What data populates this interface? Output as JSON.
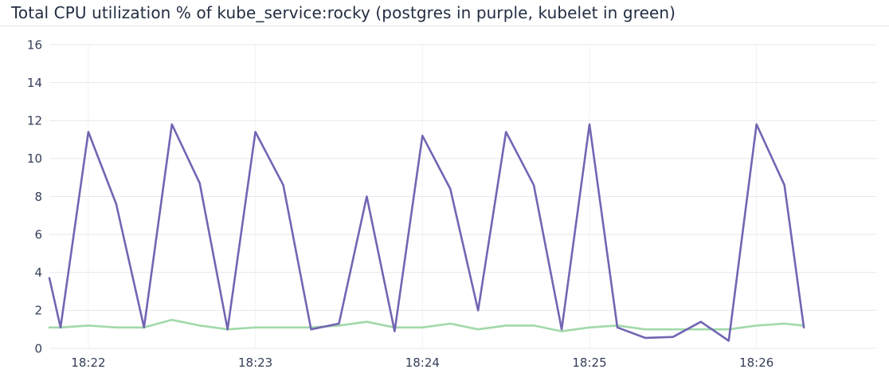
{
  "panel": {
    "title": "Total CPU utilization % of kube_service:rocky (postgres in purple, kubelet in green)"
  },
  "chart_data": {
    "type": "line",
    "title": "Total CPU utilization % of kube_service:rocky (postgres in purple, kubelet in green)",
    "xlabel": "",
    "ylabel": "",
    "ylim": [
      0,
      16
    ],
    "y_ticks": [
      0,
      2,
      4,
      6,
      8,
      10,
      12,
      14,
      16
    ],
    "xlim_seconds": [
      -14,
      283
    ],
    "x_ticks": [
      {
        "offset_s": 0,
        "label": "18:22"
      },
      {
        "offset_s": 60,
        "label": "18:23"
      },
      {
        "offset_s": 120,
        "label": "18:24"
      },
      {
        "offset_s": 180,
        "label": "18:25"
      },
      {
        "offset_s": 240,
        "label": "18:26"
      }
    ],
    "x_offsets_s": [
      -14,
      -10,
      0,
      10,
      20,
      30,
      40,
      50,
      60,
      70,
      80,
      90,
      100,
      110,
      120,
      130,
      140,
      150,
      160,
      170,
      180,
      190,
      200,
      210,
      220,
      230,
      240,
      250,
      257
    ],
    "series": [
      {
        "name": "postgres",
        "color": "#7265b3",
        "values": [
          3.7,
          1.1,
          11.4,
          7.6,
          1.1,
          11.8,
          8.7,
          1.0,
          11.4,
          8.6,
          1.0,
          1.3,
          8.0,
          0.9,
          11.2,
          8.4,
          2.0,
          11.4,
          8.6,
          1.0,
          11.8,
          1.1,
          0.55,
          0.6,
          1.4,
          0.4,
          11.8,
          8.6,
          1.1
        ]
      },
      {
        "name": "kubelet",
        "color": "#a1d9a9",
        "values": [
          1.1,
          1.1,
          1.2,
          1.1,
          1.1,
          1.5,
          1.2,
          1.0,
          1.1,
          1.1,
          1.1,
          1.2,
          1.4,
          1.1,
          1.1,
          1.3,
          1.0,
          1.2,
          1.2,
          0.9,
          1.1,
          1.2,
          1.0,
          1.0,
          1.0,
          1.0,
          1.2,
          1.3,
          1.2
        ]
      }
    ],
    "grid": true,
    "legend": "none"
  }
}
